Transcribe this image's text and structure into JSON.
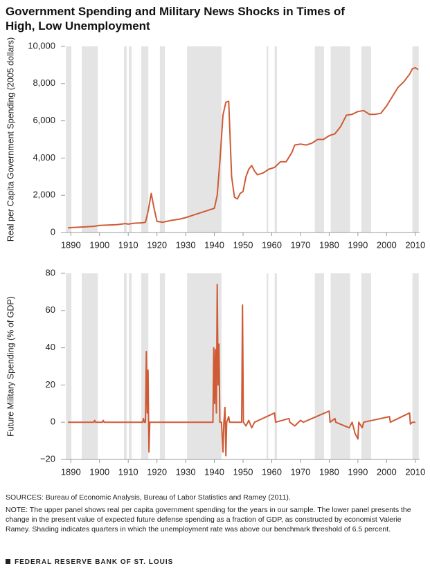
{
  "title": "Government Spending and Military News Shocks in Times of High, Low Unemployment",
  "shading": [
    [
      1888.3,
      1890.2
    ],
    [
      1893.8,
      1899.4
    ],
    [
      1908.5,
      1909.5
    ],
    [
      1910.2,
      1911.2
    ],
    [
      1914.5,
      1917
    ],
    [
      1921,
      1922.8
    ],
    [
      1930.5,
      1942.5
    ],
    [
      1958.2,
      1958.8
    ],
    [
      1961,
      1961.8
    ],
    [
      1975,
      1978.2
    ],
    [
      1980.5,
      1987.3
    ],
    [
      1991.2,
      1994.6
    ],
    [
      2009,
      2011.2
    ]
  ],
  "chart_data": [
    {
      "type": "line",
      "y_label": "Real per Capita Government Spending (2005 dollars)",
      "color": "#cf5a36",
      "xlim": [
        1888,
        2011.5
      ],
      "xticks": [
        1890,
        1900,
        1910,
        1920,
        1930,
        1940,
        1950,
        1960,
        1970,
        1980,
        1990,
        2000,
        2010
      ],
      "ylim": [
        0,
        10000
      ],
      "yticks": [
        0,
        {
          "value": 2000,
          "label": "2,000"
        },
        {
          "value": 4000,
          "label": "4,000"
        },
        {
          "value": 6000,
          "label": "6,000"
        },
        {
          "value": 8000,
          "label": "8,000"
        },
        {
          "value": 10000,
          "label": "10,000"
        }
      ],
      "x": [
        1889,
        1892,
        1895,
        1898,
        1900,
        1903,
        1906,
        1909,
        1910,
        1912,
        1915,
        1916,
        1917,
        1918,
        1919,
        1920,
        1922,
        1925,
        1928,
        1930,
        1932,
        1934,
        1936,
        1938,
        1940,
        1941,
        1942,
        1943,
        1944,
        1945,
        1946,
        1947,
        1948,
        1949,
        1950,
        1951,
        1952,
        1953,
        1954,
        1955,
        1957,
        1959,
        1961,
        1963,
        1965,
        1967,
        1968,
        1970,
        1972,
        1974,
        1976,
        1978,
        1980,
        1982,
        1984,
        1986,
        1988,
        1990,
        1992,
        1994,
        1996,
        1998,
        2000,
        2002,
        2004,
        2006,
        2008,
        2009,
        2010,
        2011
      ],
      "values": [
        250,
        280,
        300,
        330,
        380,
        400,
        420,
        480,
        450,
        500,
        520,
        550,
        1200,
        2100,
        1300,
        600,
        550,
        650,
        720,
        800,
        900,
        1000,
        1100,
        1200,
        1300,
        2000,
        4000,
        6300,
        7000,
        7050,
        3000,
        1900,
        1800,
        2100,
        2200,
        3000,
        3400,
        3600,
        3300,
        3100,
        3200,
        3400,
        3500,
        3800,
        3800,
        4300,
        4700,
        4750,
        4700,
        4800,
        5000,
        5000,
        5200,
        5300,
        5700,
        6300,
        6350,
        6500,
        6550,
        6350,
        6350,
        6400,
        6800,
        7300,
        7800,
        8100,
        8500,
        8800,
        8850,
        8750
      ]
    },
    {
      "type": "line",
      "y_label": "Future Military Spending (% of GDP)",
      "color": "#cf5a36",
      "xlim": [
        1888,
        2011.5
      ],
      "xticks": [
        1890,
        1900,
        1910,
        1920,
        1930,
        1940,
        1950,
        1960,
        1970,
        1980,
        1990,
        2000,
        2010
      ],
      "ylim": [
        -20,
        80
      ],
      "yticks": [
        {
          "value": -20,
          "label": "−20"
        },
        0,
        20,
        40,
        60,
        80
      ],
      "x": [
        1889,
        1898,
        1898.3,
        1898.6,
        1901,
        1901.3,
        1901.6,
        1915,
        1915.3,
        1915.6,
        1916,
        1916.3,
        1916.6,
        1916.9,
        1917.2,
        1917.5,
        1939.5,
        1939.8,
        1940.1,
        1940.4,
        1940.7,
        1941,
        1941.3,
        1941.6,
        1941.9,
        1942.5,
        1943,
        1943.3,
        1943.7,
        1944,
        1944.3,
        1945,
        1945.3,
        1949.5,
        1949.8,
        1950.1,
        1951,
        1952,
        1953,
        1954,
        1961,
        1961.3,
        1966,
        1966.3,
        1968,
        1970,
        1971,
        1980,
        1980.3,
        1982,
        1982.3,
        1987,
        1988,
        1989,
        1990,
        1990.3,
        1991.5,
        1992,
        2001,
        2001.3,
        2008,
        2008.3,
        2009,
        2010
      ],
      "values": [
        0,
        0,
        1,
        0,
        0,
        1,
        0,
        0,
        2,
        0,
        0,
        38,
        5,
        28,
        -16,
        0,
        0,
        40,
        10,
        39,
        5,
        74,
        20,
        42,
        0,
        0,
        -16,
        0,
        8,
        -18,
        0,
        3,
        0,
        0,
        63,
        0,
        -2,
        1,
        -3,
        0,
        5,
        0,
        2,
        0,
        -2,
        1,
        0,
        6,
        0,
        2,
        0,
        -3,
        0,
        -6,
        -9,
        0,
        -3,
        0,
        3,
        0,
        5,
        -1,
        0,
        0
      ]
    }
  ],
  "sources": "SOURCES: Bureau of Economic Analysis, Bureau of Labor Statistics and Ramey (2011).",
  "note": "NOTE: The upper panel shows real per capita government spending for the years in our sample. The lower panel presents the change in the present value of expected future defense spending as a fraction of GDP, as constructed by economist Valerie Ramey. Shading indicates quarters in which the unemployment rate was above our benchmark threshold of 6.5 percent.",
  "footer": "FEDERAL RESERVE BANK OF ST. LOUIS"
}
